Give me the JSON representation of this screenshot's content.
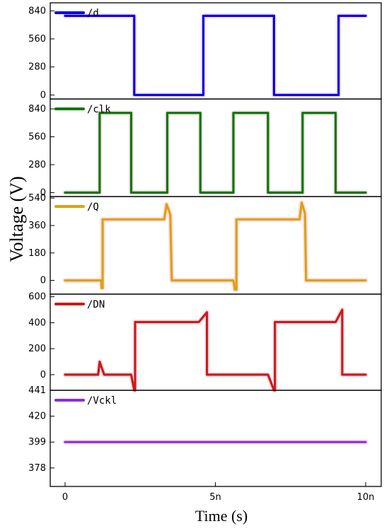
{
  "figure": {
    "xlabel": "Time (s)",
    "ylabel": "Voltage (V)"
  },
  "chart_data": {
    "type": "line",
    "shared_x": {
      "min": 0,
      "max": 10,
      "unit": "ns",
      "ticks": [
        0,
        5,
        10
      ],
      "tick_labels": [
        "0",
        "5n",
        "10n"
      ]
    },
    "panels": [
      {
        "name": "/d",
        "color": "#0000ee",
        "ylim": [
          -40,
          920
        ],
        "yticks": [
          0,
          280,
          560,
          840
        ],
        "ytick_labels": [
          "0",
          "280",
          "560",
          "840"
        ],
        "x": [
          0,
          2.3,
          2.3,
          4.6,
          4.6,
          6.95,
          6.95,
          9.1,
          9.1,
          10
        ],
        "y": [
          790,
          790,
          0,
          0,
          790,
          790,
          0,
          0,
          790,
          790
        ]
      },
      {
        "name": "/clk",
        "color": "#007800",
        "ylim": [
          -40,
          940
        ],
        "yticks": [
          0,
          280,
          560,
          840
        ],
        "ytick_labels": [
          "0",
          "280",
          "560",
          "840"
        ],
        "x": [
          0,
          1.15,
          1.15,
          2.2,
          2.2,
          3.4,
          3.4,
          4.5,
          4.5,
          5.6,
          5.6,
          6.75,
          6.75,
          7.9,
          7.9,
          9.0,
          9.0,
          10
        ],
        "y": [
          0,
          0,
          800,
          800,
          0,
          0,
          800,
          800,
          0,
          0,
          800,
          800,
          0,
          0,
          800,
          800,
          0,
          0
        ]
      },
      {
        "name": "/Q",
        "color": "#e0a010",
        "ylim": [
          -90,
          550
        ],
        "yticks": [
          0,
          180,
          360,
          540
        ],
        "ytick_labels": [
          "0",
          "180",
          "360",
          "540"
        ],
        "x": [
          0,
          1.2,
          1.22,
          1.25,
          1.25,
          3.3,
          3.38,
          3.5,
          3.55,
          3.55,
          5.6,
          5.65,
          5.7,
          5.7,
          7.8,
          7.87,
          7.98,
          8.02,
          8.02,
          10
        ],
        "y": [
          0,
          0,
          -50,
          -50,
          400,
          400,
          500,
          430,
          0,
          0,
          0,
          -60,
          -60,
          400,
          400,
          510,
          440,
          0,
          0,
          0
        ]
      },
      {
        "name": "/DN",
        "color": "#cc1a1a",
        "ylim": [
          -120,
          620
        ],
        "yticks": [
          0,
          200,
          400,
          600
        ],
        "ytick_labels": [
          "0",
          "200",
          "400",
          "600"
        ],
        "x": [
          0,
          1.1,
          1.15,
          1.3,
          2.2,
          2.3,
          2.33,
          2.33,
          4.45,
          4.72,
          4.72,
          6.75,
          6.95,
          6.98,
          6.98,
          9.0,
          9.22,
          9.22,
          10
        ],
        "y": [
          0,
          0,
          100,
          0,
          0,
          -120,
          -120,
          405,
          405,
          480,
          0,
          0,
          -120,
          -120,
          405,
          405,
          500,
          0,
          0
        ]
      },
      {
        "name": "/Vckl",
        "color": "#8b2be2",
        "ylim": [
          363,
          441
        ],
        "yticks": [
          378,
          399,
          420,
          441
        ],
        "ytick_labels": [
          "378",
          "399",
          "420",
          "441"
        ],
        "x": [
          0,
          10
        ],
        "y": [
          399,
          399
        ]
      }
    ]
  }
}
